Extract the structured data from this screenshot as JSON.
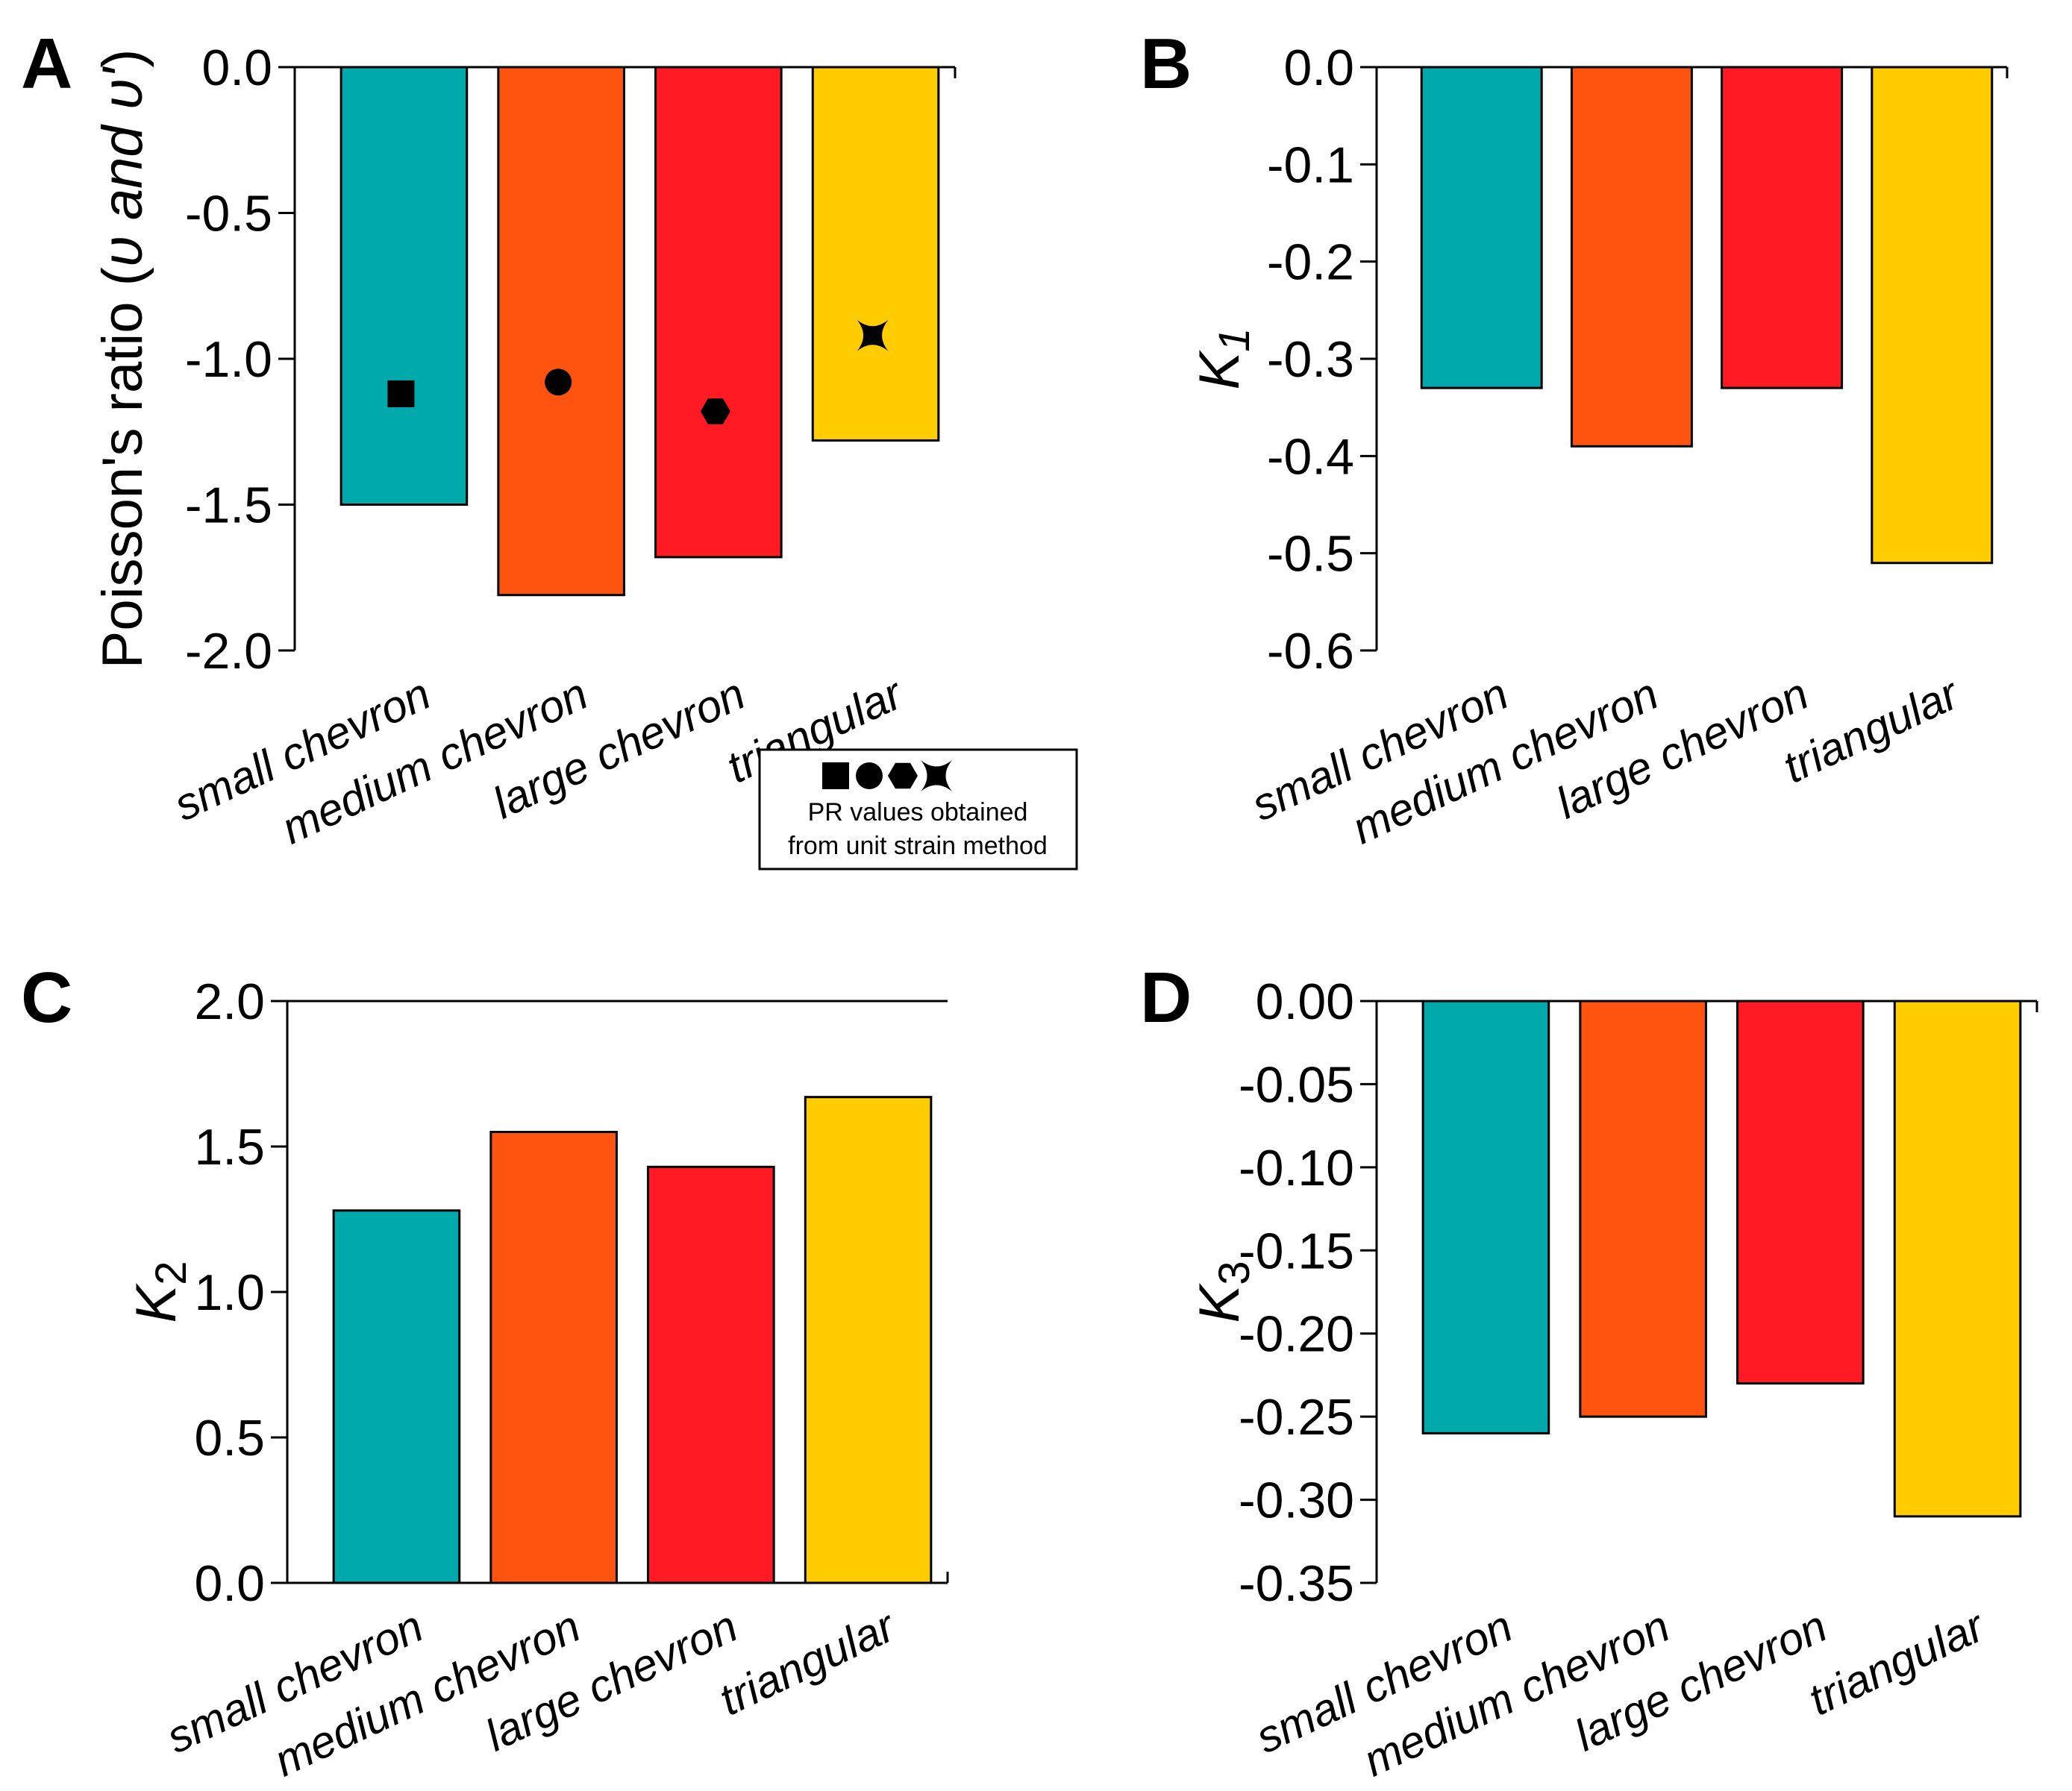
{
  "colors": {
    "small chevron": "#00a9ac",
    "medium chevron": "#ff5410",
    "large chevron": "#ff1a24",
    "triangular": "#ffcc00"
  },
  "chart_data": [
    {
      "panel": "A",
      "type": "bar",
      "categories": [
        "small chevron",
        "medium chevron",
        "large chevron",
        "triangular"
      ],
      "values": [
        -1.5,
        -1.81,
        -1.68,
        -1.28
      ],
      "ylabel": "Poisson's ratio (",
      "ylabel_italic": "υ and υ'",
      "ylabel_close": ")",
      "ylim": [
        -2.0,
        0.0
      ],
      "yticks": [
        "0.0",
        "-0.5",
        "-1.0",
        "-1.5",
        "-2.0"
      ],
      "ytick_values": [
        0.0,
        -0.5,
        -1.0,
        -1.5,
        -2.0
      ],
      "markers": {
        "name": "PR values obtained from unit strain method",
        "shapes": [
          "square",
          "circle",
          "hexagon",
          "star"
        ],
        "values": [
          -1.12,
          -1.08,
          -1.18,
          -0.92
        ]
      },
      "legend": {
        "line1": "PR values obtained",
        "line2": "from unit strain method"
      }
    },
    {
      "panel": "B",
      "type": "bar",
      "categories": [
        "small chevron",
        "medium chevron",
        "large chevron",
        "triangular"
      ],
      "values": [
        -0.33,
        -0.39,
        -0.33,
        -0.51
      ],
      "ylabel": "K",
      "ylabel_sub": "1",
      "ylim": [
        -0.6,
        0.0
      ],
      "yticks": [
        "0.0",
        "-0.1",
        "-0.2",
        "-0.3",
        "-0.4",
        "-0.5",
        "-0.6"
      ],
      "ytick_values": [
        0.0,
        -0.1,
        -0.2,
        -0.3,
        -0.4,
        -0.5,
        -0.6
      ]
    },
    {
      "panel": "C",
      "type": "bar",
      "categories": [
        "small chevron",
        "medium chevron",
        "large chevron",
        "triangular"
      ],
      "values": [
        1.28,
        1.55,
        1.43,
        1.67
      ],
      "ylabel": "K",
      "ylabel_sub": "2",
      "ylim": [
        0.0,
        2.0
      ],
      "yticks": [
        "0.0",
        "0.5",
        "1.0",
        "1.5",
        "2.0"
      ],
      "ytick_values": [
        0.0,
        0.5,
        1.0,
        1.5,
        2.0
      ]
    },
    {
      "panel": "D",
      "type": "bar",
      "categories": [
        "small chevron",
        "medium chevron",
        "large chevron",
        "triangular"
      ],
      "values": [
        -0.26,
        -0.25,
        -0.23,
        -0.31
      ],
      "ylabel": "K",
      "ylabel_sub": "3",
      "ylim": [
        -0.35,
        0.0
      ],
      "yticks": [
        "0.00",
        "-0.05",
        "-0.10",
        "-0.15",
        "-0.20",
        "-0.25",
        "-0.30",
        "-0.35"
      ],
      "ytick_values": [
        0.0,
        -0.05,
        -0.1,
        -0.15,
        -0.2,
        -0.25,
        -0.3,
        -0.35
      ]
    }
  ]
}
